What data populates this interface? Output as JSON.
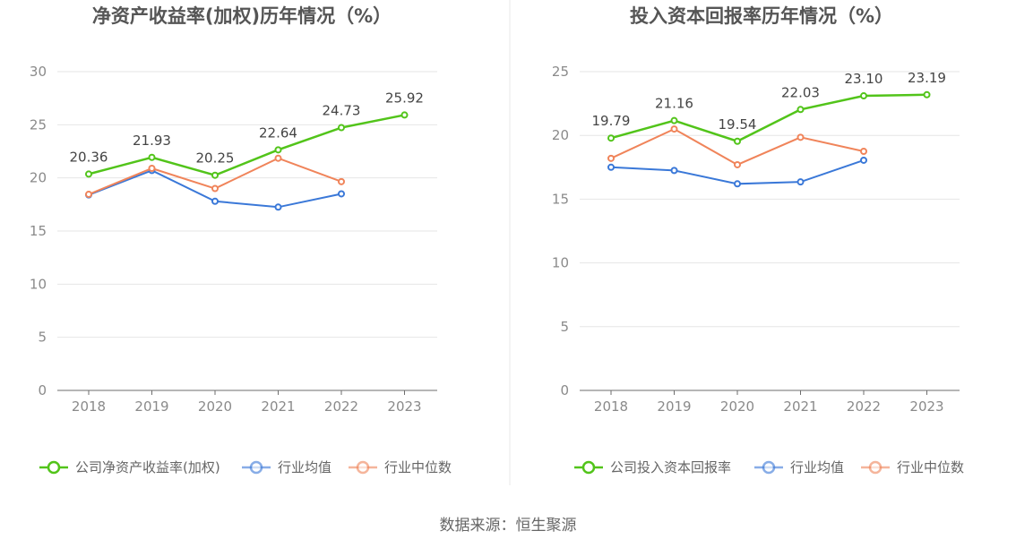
{
  "source": "数据来源：恒生聚源",
  "colors": {
    "company": "#52c41a",
    "avg": "#3a78d8",
    "median": "#f0845a",
    "grid": "#e6e6e6",
    "axis": "#6e6e6e",
    "divider": "#e8e8e8"
  },
  "chart_data": [
    {
      "type": "line",
      "title": "净资产收益率(加权)历年情况（%）",
      "categories": [
        "2018",
        "2019",
        "2020",
        "2021",
        "2022",
        "2023"
      ],
      "ylim": [
        0,
        30
      ],
      "yticks": [
        "0",
        "5",
        "10",
        "15",
        "20",
        "25",
        "30"
      ],
      "grid": true,
      "legend_position": "bottom",
      "series": [
        {
          "name": "公司净资产收益率(加权)",
          "role": "company",
          "values": [
            20.36,
            21.93,
            20.25,
            22.64,
            24.73,
            25.92
          ],
          "labels": [
            "20.36",
            "21.93",
            "20.25",
            "22.64",
            "24.73",
            "25.92"
          ]
        },
        {
          "name": "行业均值",
          "role": "avg",
          "values": [
            18.4,
            20.7,
            17.8,
            17.25,
            18.5,
            null
          ]
        },
        {
          "name": "行业中位数",
          "role": "median",
          "values": [
            18.45,
            20.9,
            19.0,
            21.85,
            19.65,
            null
          ]
        }
      ]
    },
    {
      "type": "line",
      "title": "投入资本回报率历年情况（%）",
      "categories": [
        "2018",
        "2019",
        "2020",
        "2021",
        "2022",
        "2023"
      ],
      "ylim": [
        0,
        25
      ],
      "yticks": [
        "0",
        "5",
        "10",
        "15",
        "20",
        "25"
      ],
      "grid": true,
      "legend_position": "bottom",
      "series": [
        {
          "name": "公司投入资本回报率",
          "role": "company",
          "values": [
            19.79,
            21.16,
            19.54,
            22.03,
            23.1,
            23.19
          ],
          "labels": [
            "19.79",
            "21.16",
            "19.54",
            "22.03",
            "23.10",
            "23.19"
          ]
        },
        {
          "name": "行业均值",
          "role": "avg",
          "values": [
            17.5,
            17.25,
            16.2,
            16.35,
            18.05,
            null
          ]
        },
        {
          "name": "行业中位数",
          "role": "median",
          "values": [
            18.2,
            20.5,
            17.7,
            19.85,
            18.75,
            null
          ]
        }
      ]
    }
  ]
}
